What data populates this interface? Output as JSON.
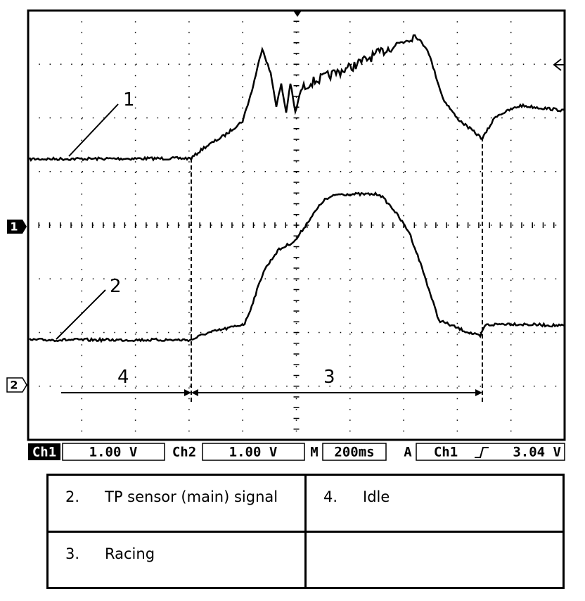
{
  "scope": {
    "trace_labels": [
      "1",
      "2"
    ],
    "phase_labels": [
      "3",
      "4"
    ],
    "channel_markers": [
      "1",
      "2"
    ],
    "status_bar": {
      "ch1": "Ch1",
      "ch1_scale": "1.00 V",
      "ch2": "Ch2",
      "ch2_scale": "1.00 V",
      "timebase_label": "M",
      "timebase": "200ms",
      "trigger_label": "A",
      "trigger_source": "Ch1",
      "trigger_level": "3.04 V"
    }
  },
  "table": {
    "rows": [
      [
        {
          "num": "2.",
          "text": "TP sensor (main) signal"
        },
        {
          "num": "4.",
          "text": "Idle"
        }
      ],
      [
        {
          "num": "3.",
          "text": "Racing"
        }
      ]
    ]
  }
}
